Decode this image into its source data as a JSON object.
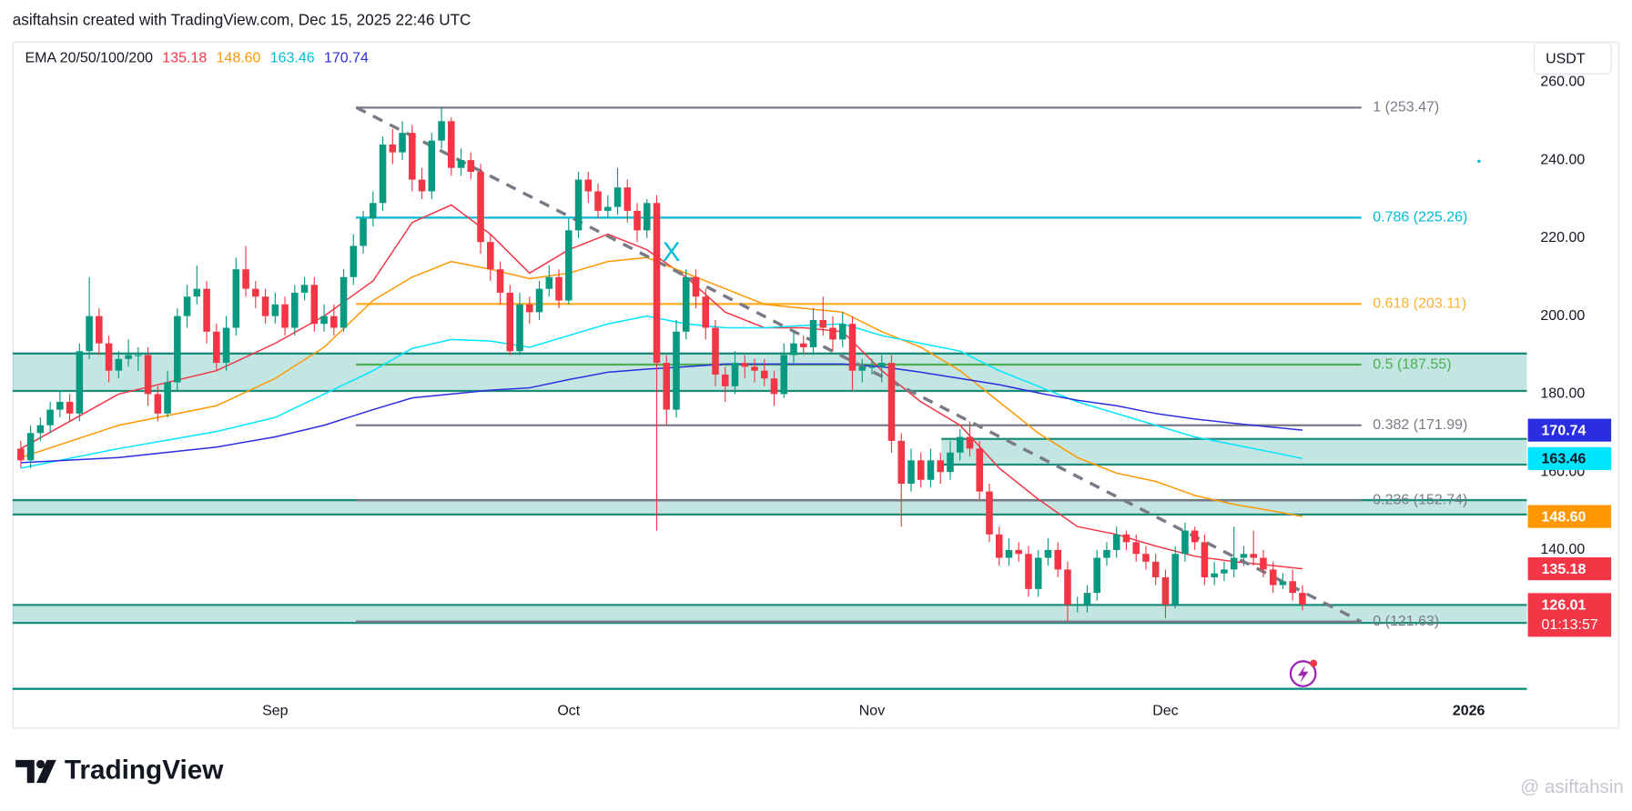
{
  "chart_data": {
    "type": "candlestick",
    "header": "asiftahsin created with TradingView.com, Dec 15, 2025 22:46 UTC",
    "currency": "USDT",
    "legend_title": "EMA 20/50/100/200",
    "brand": "TradingView",
    "watermark": "@ asiftahsin",
    "countdown": "01:13:57",
    "xlim": [
      -0.85,
      153.94
    ],
    "ylim": [
      104.53,
      270.4
    ],
    "grid": true,
    "xticks": [
      {
        "value": 26,
        "label": "Sep"
      },
      {
        "value": 56,
        "label": "Oct"
      },
      {
        "value": 87,
        "label": "Nov"
      },
      {
        "value": 117,
        "label": "Dec"
      },
      {
        "value": 148,
        "label": "2026"
      }
    ],
    "yticks": [
      {
        "value": 260,
        "label": "260.00"
      },
      {
        "value": 240,
        "label": "240.00"
      },
      {
        "value": 220,
        "label": "220.00"
      },
      {
        "value": 200,
        "label": "200.00"
      },
      {
        "value": 180,
        "label": "180.00"
      },
      {
        "value": 160,
        "label": "160.00"
      },
      {
        "value": 140,
        "label": "140.00"
      }
    ],
    "candles": {
      "up_color": "#089981",
      "down_color": "#f23645",
      "open": [
        166,
        163,
        170,
        172,
        176,
        178,
        175,
        191,
        200,
        193,
        186,
        189,
        190,
        190,
        180,
        175,
        183,
        200,
        205,
        207,
        196,
        188,
        197,
        212,
        207,
        205,
        200,
        203,
        197,
        206,
        208,
        198,
        200,
        197,
        210,
        218,
        225,
        229,
        244,
        242,
        247,
        235,
        232,
        245,
        250,
        238,
        240,
        237,
        219,
        212,
        206,
        191,
        203,
        201,
        207,
        210,
        204,
        222,
        235,
        232,
        227,
        228,
        233,
        227,
        222,
        229,
        188,
        176,
        196,
        210,
        205,
        197,
        185,
        182,
        188,
        187,
        186,
        184,
        180,
        190,
        193,
        192,
        199,
        197,
        194,
        198,
        186,
        187,
        187,
        188,
        168,
        157,
        163,
        158,
        163,
        160,
        165,
        169,
        166,
        155,
        144,
        138,
        140,
        139,
        130,
        138,
        140,
        135,
        126,
        126,
        129,
        138,
        140,
        144,
        142,
        139,
        137,
        133,
        126,
        139,
        145,
        142,
        133,
        134,
        135,
        138,
        139,
        138,
        135,
        131,
        132,
        129
      ],
      "high": [
        168,
        172,
        174,
        178,
        181,
        180,
        193,
        210,
        202,
        195,
        191,
        194,
        192,
        192,
        182,
        186,
        202,
        208,
        213,
        209,
        198,
        200,
        215,
        218,
        209,
        207,
        206,
        205,
        208,
        210,
        210,
        203,
        203,
        212,
        221,
        227,
        232,
        246,
        248,
        250,
        249,
        238,
        247,
        253.5,
        251,
        243,
        242,
        239,
        221,
        214,
        208,
        206,
        205,
        209,
        213,
        212,
        225,
        237,
        237,
        234,
        231,
        238,
        235,
        229,
        230,
        231,
        190,
        199,
        212,
        212,
        207,
        199,
        187,
        191,
        190,
        189,
        189,
        186,
        193,
        196,
        195,
        202,
        205,
        200,
        201,
        200,
        189,
        189,
        190,
        190,
        170,
        166,
        165,
        166,
        165,
        168,
        171,
        173,
        168,
        157,
        146,
        143,
        142,
        141,
        140,
        143,
        142,
        137,
        128,
        131,
        140,
        142,
        146,
        145,
        144,
        141,
        139,
        135,
        141,
        147,
        146,
        144,
        137,
        137,
        146,
        141,
        145,
        140,
        137,
        134,
        135,
        131
      ],
      "low": [
        161,
        161,
        168,
        170,
        174,
        173,
        173,
        189,
        190,
        183,
        184,
        187,
        186,
        177,
        173,
        174,
        181,
        197,
        203,
        193,
        186,
        186,
        195,
        205,
        202,
        198,
        198,
        195,
        195,
        204,
        196,
        196,
        195,
        196,
        208,
        216,
        223,
        227,
        239,
        240,
        232,
        230,
        230,
        243,
        236,
        236,
        235,
        216,
        209,
        203,
        190,
        190,
        198,
        199,
        205,
        202,
        203,
        220,
        229,
        225,
        225,
        226,
        224,
        219,
        220,
        145,
        172,
        174,
        194,
        202,
        194,
        182,
        178,
        180,
        184,
        183,
        182,
        177,
        179,
        188,
        190,
        190,
        195,
        191,
        192,
        181,
        183,
        185,
        183,
        165,
        146,
        155,
        156,
        156,
        157,
        158,
        163,
        164,
        153,
        142,
        136,
        136,
        137,
        128,
        128,
        136,
        133,
        121.7,
        124,
        124,
        127,
        136,
        138,
        140,
        137,
        135,
        131,
        122.5,
        125,
        137,
        140,
        131,
        131,
        132,
        133,
        136,
        136,
        133,
        129,
        130,
        127,
        124.5
      ],
      "close": [
        163,
        170,
        172,
        176,
        178,
        175,
        191,
        200,
        193,
        186,
        189,
        190,
        190,
        180,
        175,
        183,
        200,
        205,
        207,
        196,
        188,
        197,
        212,
        207,
        205,
        200,
        203,
        197,
        206,
        208,
        198,
        200,
        197,
        210,
        218,
        225,
        229,
        244,
        242,
        247,
        235,
        232,
        245,
        250,
        238,
        240,
        237,
        219,
        212,
        206,
        191,
        203,
        201,
        207,
        210,
        204,
        222,
        235,
        232,
        227,
        228,
        233,
        227,
        222,
        229,
        188,
        176,
        196,
        210,
        205,
        197,
        185,
        182,
        188,
        187,
        186,
        184,
        180,
        190,
        193,
        192,
        199,
        197,
        194,
        198,
        186,
        187,
        187,
        188,
        168,
        157,
        163,
        158,
        163,
        160,
        165,
        169,
        166,
        155,
        144,
        138,
        140,
        139,
        130,
        138,
        140,
        135,
        126,
        126,
        129,
        138,
        140,
        144,
        142,
        139,
        137,
        133,
        126,
        139,
        145,
        142,
        133,
        134,
        135,
        138,
        139,
        138,
        135,
        131,
        132,
        129,
        126.01
      ]
    },
    "ema": [
      {
        "color": "#f23645",
        "last_label": "135.18",
        "x": [
          0,
          10,
          20,
          26,
          31,
          36,
          40,
          44,
          48,
          52,
          56,
          60,
          64,
          68,
          72,
          76,
          80,
          84,
          88,
          92,
          96,
          100,
          104,
          108,
          112,
          116,
          120,
          124,
          128,
          131
        ],
        "values": [
          166,
          180,
          186,
          193,
          200,
          209,
          224,
          228.5,
          221,
          211,
          217,
          221,
          217,
          210,
          201,
          197,
          197,
          196,
          186,
          178,
          172,
          161,
          153,
          146,
          144,
          141,
          138.4,
          137,
          136,
          135.18
        ]
      },
      {
        "color": "#ff9800",
        "last_label": "148.60",
        "x": [
          0,
          10,
          20,
          26,
          31,
          36,
          40,
          44,
          48,
          52,
          56,
          60,
          64,
          68,
          72,
          76,
          80,
          84,
          88,
          92,
          96,
          100,
          104,
          108,
          112,
          116,
          120,
          124,
          128,
          131
        ],
        "values": [
          163.7,
          172,
          177,
          184,
          192,
          204,
          210,
          214,
          212,
          209.6,
          211,
          214,
          215,
          211,
          207,
          203,
          202,
          201,
          196,
          192,
          186,
          178,
          170,
          163.7,
          159.7,
          157.6,
          154,
          151.7,
          150,
          148.6
        ]
      },
      {
        "color": "#00e5ff",
        "last_label": "163.46",
        "x": [
          0,
          10,
          20,
          26,
          31,
          36,
          40,
          44,
          48,
          52,
          56,
          60,
          64,
          68,
          72,
          76,
          80,
          84,
          88,
          92,
          96,
          100,
          104,
          108,
          112,
          116,
          120,
          124,
          128,
          131
        ],
        "values": [
          161,
          166,
          170.4,
          174,
          180,
          186,
          191.7,
          194,
          193.6,
          192,
          195,
          198,
          200,
          198,
          197,
          197,
          197.6,
          198,
          195,
          193,
          191,
          186,
          182,
          178,
          175,
          172,
          169,
          167,
          165,
          163.46
        ]
      },
      {
        "color": "#2a2ee0",
        "last_label": "170.74",
        "x": [
          0,
          10,
          20,
          26,
          31,
          36,
          40,
          44,
          48,
          52,
          56,
          60,
          64,
          68,
          72,
          76,
          80,
          84,
          88,
          92,
          96,
          100,
          104,
          108,
          112,
          116,
          120,
          124,
          128,
          131
        ],
        "values": [
          162.4,
          163.7,
          166.4,
          169,
          172,
          176,
          179,
          180,
          181,
          181.6,
          183.7,
          185.6,
          186.4,
          187,
          187.7,
          187.7,
          187.7,
          187.7,
          187,
          185.6,
          184,
          182.4,
          180.3,
          178.4,
          177,
          175,
          173.6,
          172.5,
          171.5,
          170.74
        ]
      }
    ],
    "fib_levels": [
      {
        "label": "1 (253.47)",
        "price": 253.47,
        "color": "#787b86"
      },
      {
        "label": "0.786 (225.26)",
        "price": 225.26,
        "color": "#00bcd4"
      },
      {
        "label": "0.618 (203.11)",
        "price": 203.11,
        "color": "#ffb02e"
      },
      {
        "label": "0.5 (187.55)",
        "price": 187.55,
        "color": "#4caf50"
      },
      {
        "label": "0.382 (171.99)",
        "price": 171.99,
        "color": "#787b86"
      },
      {
        "label": "0.236 (152.74)",
        "price": 152.74,
        "color": "#787b86"
      },
      {
        "label": "0 (121.63)",
        "price": 121.63,
        "color": "#787b86"
      }
    ],
    "zones": [
      {
        "top": 190.4,
        "bottom": 180.8,
        "from": -0.85
      },
      {
        "top": 168.5,
        "bottom": 161.9,
        "from": 94.1
      },
      {
        "top": 152.8,
        "bottom": 149.1,
        "from": -0.85
      },
      {
        "top": 125.9,
        "bottom": 121.3,
        "from": -0.85
      }
    ],
    "trendline": {
      "color": "#787b86",
      "x": [
        34.3,
        137
      ],
      "values": [
        253.5,
        121.6
      ]
    },
    "annotation": {
      "text": "X",
      "color": "#00bcd4",
      "x": 66.5,
      "y": 216
    }
  }
}
